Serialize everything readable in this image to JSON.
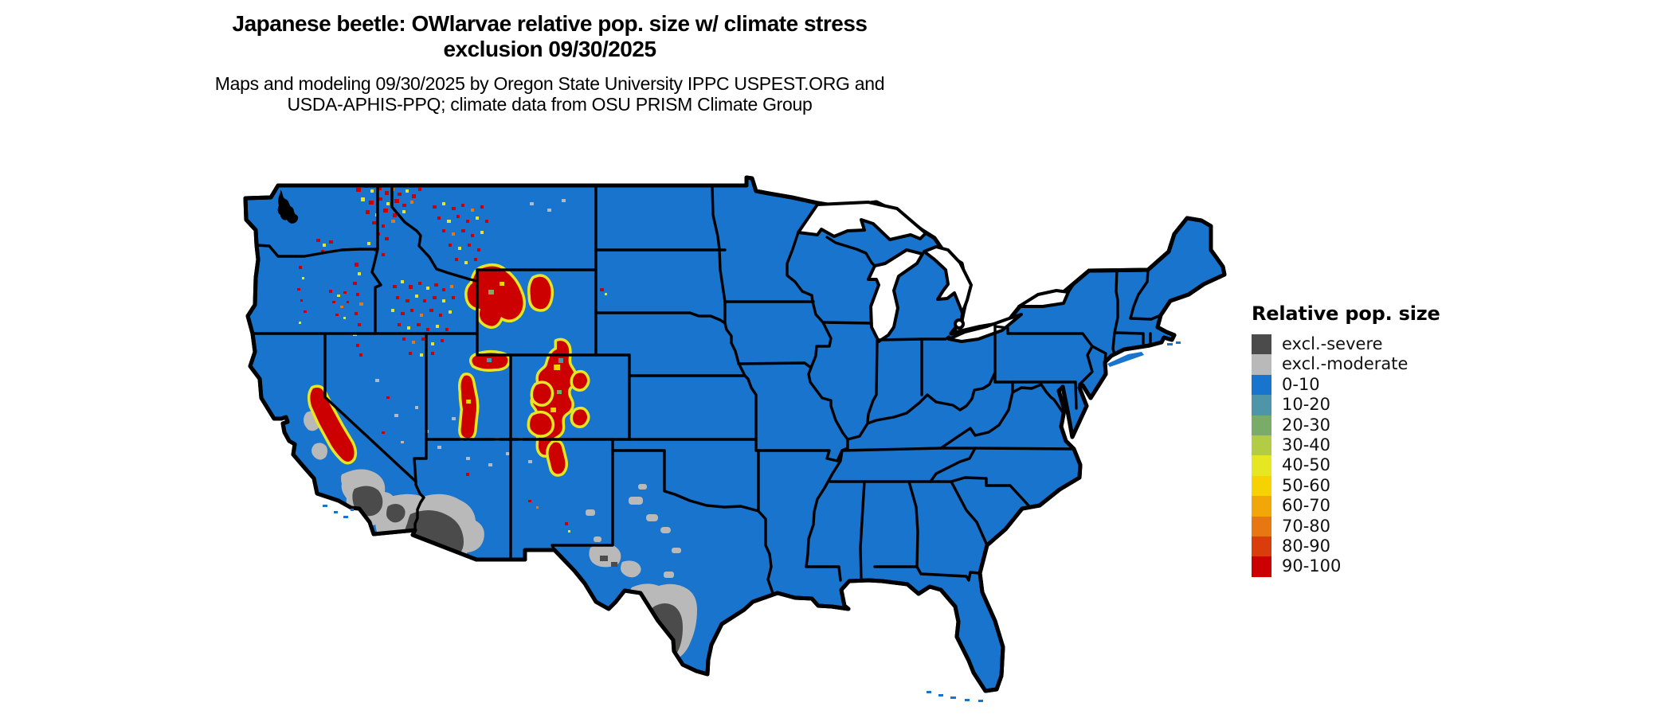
{
  "header": {
    "title_line1": "Japanese beetle: OWlarvae relative pop. size w/ climate stress",
    "title_line2": "exclusion 09/30/2025",
    "subtitle_line1": "Maps and modeling 09/30/2025 by Oregon State University IPPC USPEST.ORG and",
    "subtitle_line2": "USDA-APHIS-PPQ; climate data from OSU PRISM Climate Group"
  },
  "legend": {
    "title": "Relative pop. size",
    "items": [
      {
        "label": "excl.-severe",
        "color": "#4B4B4B"
      },
      {
        "label": "excl.-moderate",
        "color": "#B9B9B9"
      },
      {
        "label": "0-10",
        "color": "#1874CD"
      },
      {
        "label": "10-20",
        "color": "#4E95A9"
      },
      {
        "label": "20-30",
        "color": "#7BAB69"
      },
      {
        "label": "30-40",
        "color": "#B4CB45"
      },
      {
        "label": "40-50",
        "color": "#E7E623"
      },
      {
        "label": "50-60",
        "color": "#F7D203"
      },
      {
        "label": "60-70",
        "color": "#F1A707"
      },
      {
        "label": "70-80",
        "color": "#E67711"
      },
      {
        "label": "80-90",
        "color": "#DA3D0C"
      },
      {
        "label": "90-100",
        "color": "#CC0000"
      }
    ]
  },
  "map": {
    "land_color": "#1874CD",
    "border_color": "#000000",
    "background_color": "#FFFFFF"
  }
}
